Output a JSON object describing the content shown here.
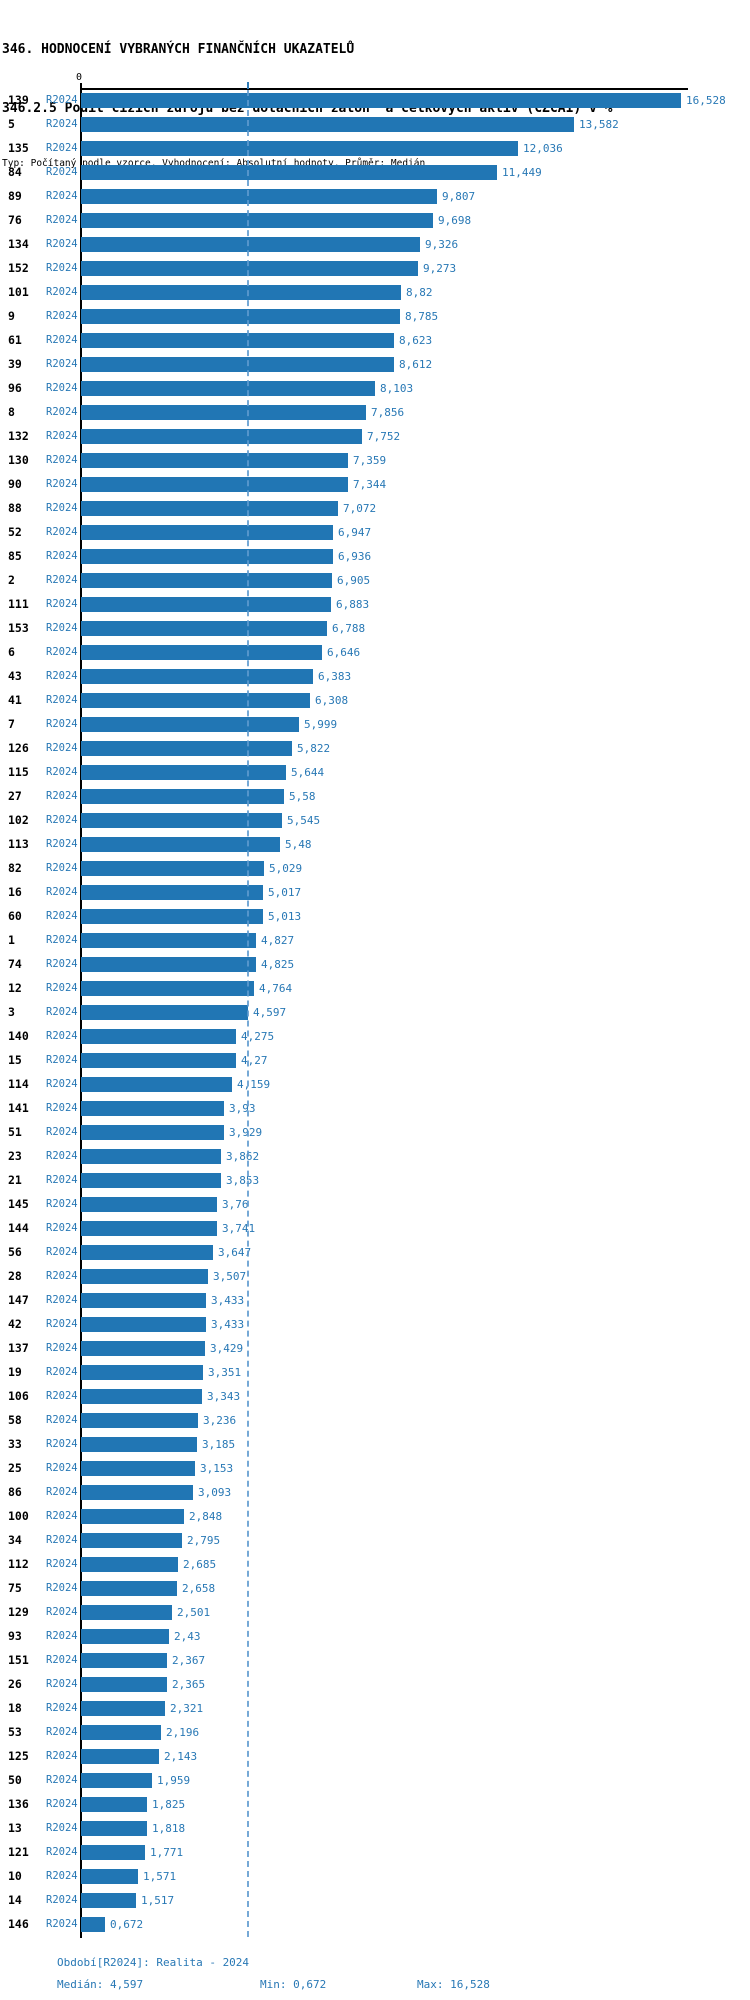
{
  "header": {
    "title": "346. HODNOCENÍ VYBRANÝCH FINANČNÍCH UKAZATELŮ",
    "subtitle": "346.2.5 Podíl cizích zdrojů bez dotačních záloh  a celkových aktiv (CZCA1) v %",
    "meta": "Typ: Počítaný podle vzorce, Vyhodnocení: Absolutní hodnoty, Průměr: Medián"
  },
  "axis": {
    "origin_label": "0"
  },
  "colors": {
    "bar": "#2176b4",
    "label_blue": "#2878b5",
    "median_line": "#5f9bd0",
    "axis": "#000000"
  },
  "chart_data": {
    "type": "bar",
    "orientation": "horizontal",
    "title": "346.2.5 Podíl cizích zdrojů bez dotačních záloh  a celkových aktiv (CZCA1) v %",
    "xlabel": "",
    "ylabel": "",
    "xlim": [
      0,
      16.75
    ],
    "grid": false,
    "legend_position": "none",
    "period_label": "R2024",
    "median": 4.597,
    "min": 0.672,
    "max": 16.528,
    "categories": [
      "139",
      "5",
      "135",
      "84",
      "89",
      "76",
      "134",
      "152",
      "101",
      "9",
      "61",
      "39",
      "96",
      "8",
      "132",
      "130",
      "90",
      "88",
      "52",
      "85",
      "2",
      "111",
      "153",
      "6",
      "43",
      "41",
      "7",
      "126",
      "115",
      "27",
      "102",
      "113",
      "82",
      "16",
      "60",
      "1",
      "74",
      "12",
      "3",
      "140",
      "15",
      "114",
      "141",
      "51",
      "23",
      "21",
      "145",
      "144",
      "56",
      "28",
      "147",
      "42",
      "137",
      "19",
      "106",
      "58",
      "33",
      "25",
      "86",
      "100",
      "34",
      "112",
      "75",
      "129",
      "93",
      "151",
      "26",
      "18",
      "53",
      "125",
      "50",
      "136",
      "13",
      "121",
      "10",
      "14",
      "146"
    ],
    "values": [
      16.528,
      13.582,
      12.036,
      11.449,
      9.807,
      9.698,
      9.326,
      9.273,
      8.82,
      8.785,
      8.623,
      8.612,
      8.103,
      7.856,
      7.752,
      7.359,
      7.344,
      7.072,
      6.947,
      6.936,
      6.905,
      6.883,
      6.788,
      6.646,
      6.383,
      6.308,
      5.999,
      5.822,
      5.644,
      5.58,
      5.545,
      5.48,
      5.029,
      5.017,
      5.013,
      4.827,
      4.825,
      4.764,
      4.597,
      4.275,
      4.27,
      4.159,
      3.93,
      3.929,
      3.862,
      3.853,
      3.76,
      3.741,
      3.647,
      3.507,
      3.433,
      3.433,
      3.429,
      3.351,
      3.343,
      3.236,
      3.185,
      3.153,
      3.093,
      2.848,
      2.795,
      2.685,
      2.658,
      2.501,
      2.43,
      2.367,
      2.365,
      2.321,
      2.196,
      2.143,
      1.959,
      1.825,
      1.818,
      1.771,
      1.571,
      1.517,
      0.672
    ],
    "value_labels": [
      "16,528",
      "13,582",
      "12,036",
      "11,449",
      "9,807",
      "9,698",
      "9,326",
      "9,273",
      "8,82",
      "8,785",
      "8,623",
      "8,612",
      "8,103",
      "7,856",
      "7,752",
      "7,359",
      "7,344",
      "7,072",
      "6,947",
      "6,936",
      "6,905",
      "6,883",
      "6,788",
      "6,646",
      "6,383",
      "6,308",
      "5,999",
      "5,822",
      "5,644",
      "5,58",
      "5,545",
      "5,48",
      "5,029",
      "5,017",
      "5,013",
      "4,827",
      "4,825",
      "4,764",
      "4,597",
      "4,275",
      "4,27",
      "4,159",
      "3,93",
      "3,929",
      "3,862",
      "3,853",
      "3,76",
      "3,741",
      "3,647",
      "3,507",
      "3,433",
      "3,433",
      "3,429",
      "3,351",
      "3,343",
      "3,236",
      "3,185",
      "3,153",
      "3,093",
      "2,848",
      "2,795",
      "2,685",
      "2,658",
      "2,501",
      "2,43",
      "2,367",
      "2,365",
      "2,321",
      "2,196",
      "2,143",
      "1,959",
      "1,825",
      "1,818",
      "1,771",
      "1,571",
      "1,517",
      "0,672"
    ]
  },
  "footer": {
    "period": "Období[R2024]: Realita - 2024",
    "median": "Medián: 4,597",
    "min": "Min: 0,672",
    "max": "Max: 16,528"
  }
}
